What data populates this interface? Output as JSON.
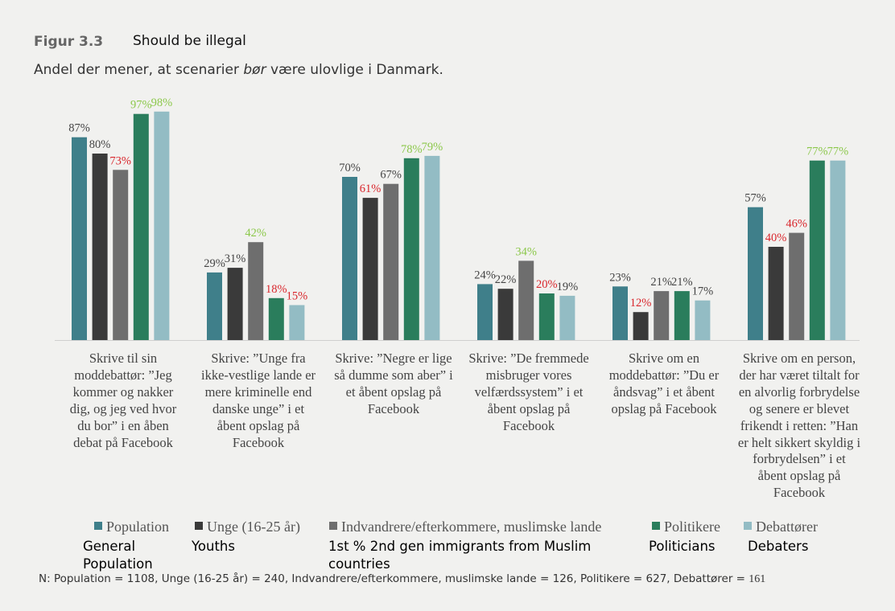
{
  "figure": {
    "number": "Figur 3.3",
    "title_en": "Should be illegal",
    "subtitle_before": "Andel der mener, at scenarier ",
    "subtitle_emph": "bør",
    "subtitle_after": " være ulovlige i Danmark."
  },
  "chart_data": {
    "type": "bar",
    "ylim": [
      0,
      100
    ],
    "grid": false,
    "legend_position": "bottom",
    "categories": [
      "Skrive til sin moddebattør: ”Jeg kommer og nakker dig, og jeg ved hvor du bor” i en åben debat på Facebook",
      "Skrive: ”Unge fra ikke-vestlige lande er mere kriminelle end danske unge” i et åbent opslag på Facebook",
      "Skrive: ”Negre er lige så dumme som aber” i et åbent opslag på Facebook",
      "Skrive: ”De fremmede misbruger vores velfærdssystem” i et åbent opslag på Facebook",
      "Skrive om en moddebattør: ”Du er åndsvag” i et åbent opslag på Facebook",
      "Skrive om en person, der har været tiltalt for en alvorlig forbrydelse og senere er blevet frikendt i retten: ”Han er helt sikkert skyldig i forbrydelsen” i et åbent opslag på Facebook"
    ],
    "category_label_lines": [
      [
        "Skrive til sin",
        "moddebattør: ”Jeg",
        "kommer og nakker",
        "dig, og jeg ved hvor",
        "du bor” i en åben",
        "debat på Facebook"
      ],
      [
        "Skrive: ”Unge fra",
        "ikke-vestlige lande er",
        "mere kriminelle end",
        "danske unge” i et",
        "åbent opslag på",
        "Facebook"
      ],
      [
        "Skrive: ”Negre er lige",
        "så dumme som aber” i",
        "et åbent opslag på",
        "Facebook"
      ],
      [
        "Skrive: ”De fremmede",
        "misbruger vores",
        "velfærdssystem” i et",
        "åbent opslag på",
        "Facebook"
      ],
      [
        "Skrive om en",
        "moddebattør: ”Du er",
        "åndsvag” i et åbent",
        "opslag på Facebook"
      ],
      [
        "Skrive om en person,",
        "der har været tiltalt for",
        "en alvorlig forbrydelse",
        "og senere er blevet",
        "frikendt i retten: ”Han",
        "er helt sikkert skyldig i",
        "forbrydelsen” i et",
        "åbent opslag på",
        "Facebook"
      ]
    ],
    "series": [
      {
        "name": "Population",
        "color": "#3f7f8a",
        "values": [
          87,
          29,
          70,
          24,
          23,
          57
        ]
      },
      {
        "name": "Unge (16-25 år)",
        "color": "#3a3a3a",
        "values": [
          80,
          31,
          61,
          22,
          12,
          40
        ]
      },
      {
        "name": "Indvandrere/efterkommere, muslimske lande",
        "color": "#6e6e6e",
        "values": [
          73,
          42,
          67,
          34,
          21,
          46
        ]
      },
      {
        "name": "Politikere",
        "color": "#2a7d5c",
        "values": [
          97,
          18,
          78,
          20,
          21,
          77
        ]
      },
      {
        "name": "Debattører",
        "color": "#93bcc4",
        "values": [
          98,
          15,
          79,
          19,
          17,
          77
        ]
      }
    ],
    "data_label_colors": [
      [
        "#444444",
        "#444444",
        "#d9262c",
        "#8cc84b",
        "#8cc84b"
      ],
      [
        "#444444",
        "#444444",
        "#8cc84b",
        "#d9262c",
        "#d9262c"
      ],
      [
        "#444444",
        "#d9262c",
        "#444444",
        "#8cc84b",
        "#8cc84b"
      ],
      [
        "#444444",
        "#444444",
        "#8cc84b",
        "#d9262c",
        "#444444"
      ],
      [
        "#444444",
        "#d9262c",
        "#444444",
        "#444444",
        "#444444"
      ],
      [
        "#444444",
        "#d9262c",
        "#d9262c",
        "#8cc84b",
        "#8cc84b"
      ]
    ],
    "value_suffix": "%"
  },
  "legend_translations": [
    [
      "General",
      "Population"
    ],
    [
      "Youths"
    ],
    [
      "1st % 2nd gen immigrants from Muslim",
      "countries"
    ],
    [
      "Politicians"
    ],
    [
      "Debaters"
    ]
  ],
  "footnote": {
    "text": "N: Population = 1108, Unge (16-25 år) = 240, Indvandrere/efterkommere, muslimske lande = 126, Politikere = 627, Debattører = ",
    "last_value": "161"
  }
}
